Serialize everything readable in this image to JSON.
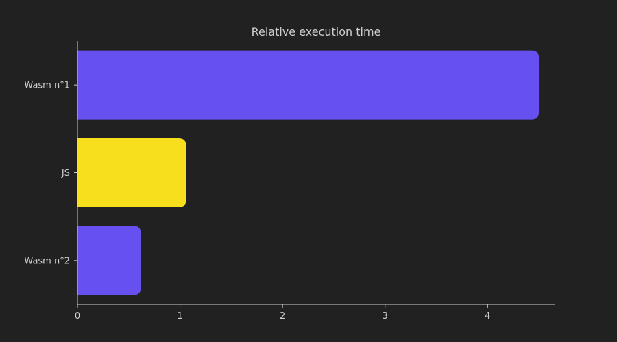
{
  "chart_data": {
    "type": "bar",
    "orientation": "horizontal",
    "title": "Relative execution time",
    "xlabel": "",
    "ylabel": "",
    "categories": [
      "Wasm n°1",
      "JS",
      "Wasm n°2"
    ],
    "values": [
      4.5,
      1.06,
      0.62
    ],
    "bar_colors": [
      "#6650f0",
      "#f7df1e",
      "#6650f0"
    ],
    "xlim": [
      0,
      4.66
    ],
    "xticks": [
      0,
      1,
      2,
      3,
      4
    ],
    "grid": false,
    "legend": "none"
  },
  "colors": {
    "background": "#212121",
    "axis": "#cfcfcf",
    "text": "#cfcfcf"
  }
}
